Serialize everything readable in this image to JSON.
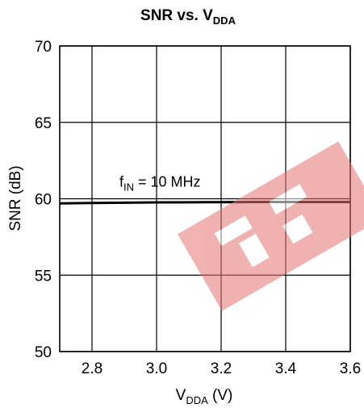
{
  "chart_data": {
    "type": "line",
    "title": {
      "main": "SNR vs. V",
      "sub": "DDA"
    },
    "xlabel": {
      "main": "V",
      "sub": "DDA",
      "rest": " (V)"
    },
    "ylabel": "SNR (dB)",
    "xlim": [
      2.7,
      3.6
    ],
    "ylim": [
      50,
      70
    ],
    "xticks": [
      2.8,
      3.0,
      3.2,
      3.4,
      3.6
    ],
    "xtick_labels": [
      "2.8",
      "3.0",
      "3.2",
      "3.4",
      "3.6"
    ],
    "yticks": [
      50,
      55,
      60,
      65,
      70
    ],
    "ytick_labels": [
      "50",
      "55",
      "60",
      "65",
      "70"
    ],
    "grid": true,
    "series": [
      {
        "annotation": {
          "main": "f",
          "sub": "IN",
          "rest": " = 10 MHz"
        },
        "annotation_at": [
          2.9,
          61.1
        ],
        "x": [
          2.7,
          2.8,
          2.9,
          3.0,
          3.1,
          3.2,
          3.3,
          3.4,
          3.5,
          3.6
        ],
        "y": [
          59.7,
          59.72,
          59.74,
          59.76,
          59.77,
          59.78,
          59.79,
          59.79,
          59.79,
          59.79
        ]
      }
    ]
  }
}
